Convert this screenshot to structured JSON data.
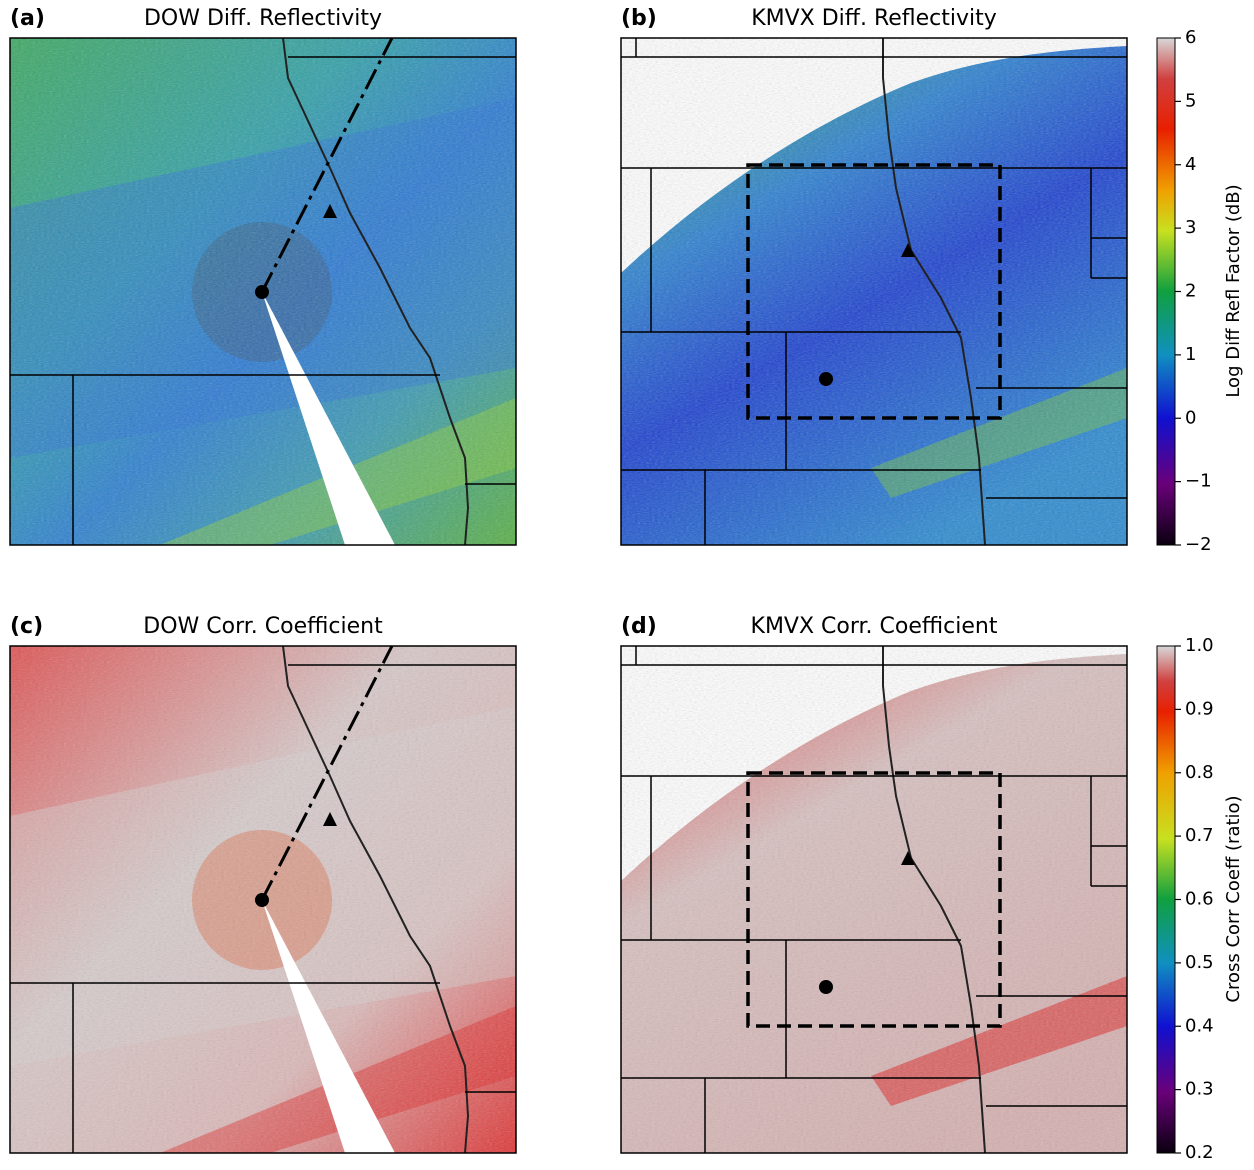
{
  "panels": [
    {
      "label": "(a)",
      "title": "DOW Diff. Reflectivity"
    },
    {
      "label": "(b)",
      "title": "KMVX Diff. Reflectivity"
    },
    {
      "label": "(c)",
      "title": "DOW Corr. Coefficient"
    },
    {
      "label": "(d)",
      "title": "KMVX Corr. Coefficient"
    }
  ],
  "colorbars": [
    {
      "label": "Log Diff Refl Factor (dB)",
      "lim": [
        -2,
        6
      ],
      "ticks": [
        {
          "value": -2,
          "label": "−2"
        },
        {
          "value": -1,
          "label": "−1"
        },
        0,
        1,
        2,
        3,
        4,
        5,
        6
      ]
    },
    {
      "label": "Cross Corr Coeff (ratio)",
      "lim": [
        0.2,
        1.0
      ],
      "ticks": [
        0.2,
        0.3,
        0.4,
        0.5,
        0.6,
        0.7,
        0.8,
        0.9,
        {
          "value": 1.0,
          "label": "1.0"
        }
      ]
    }
  ]
}
